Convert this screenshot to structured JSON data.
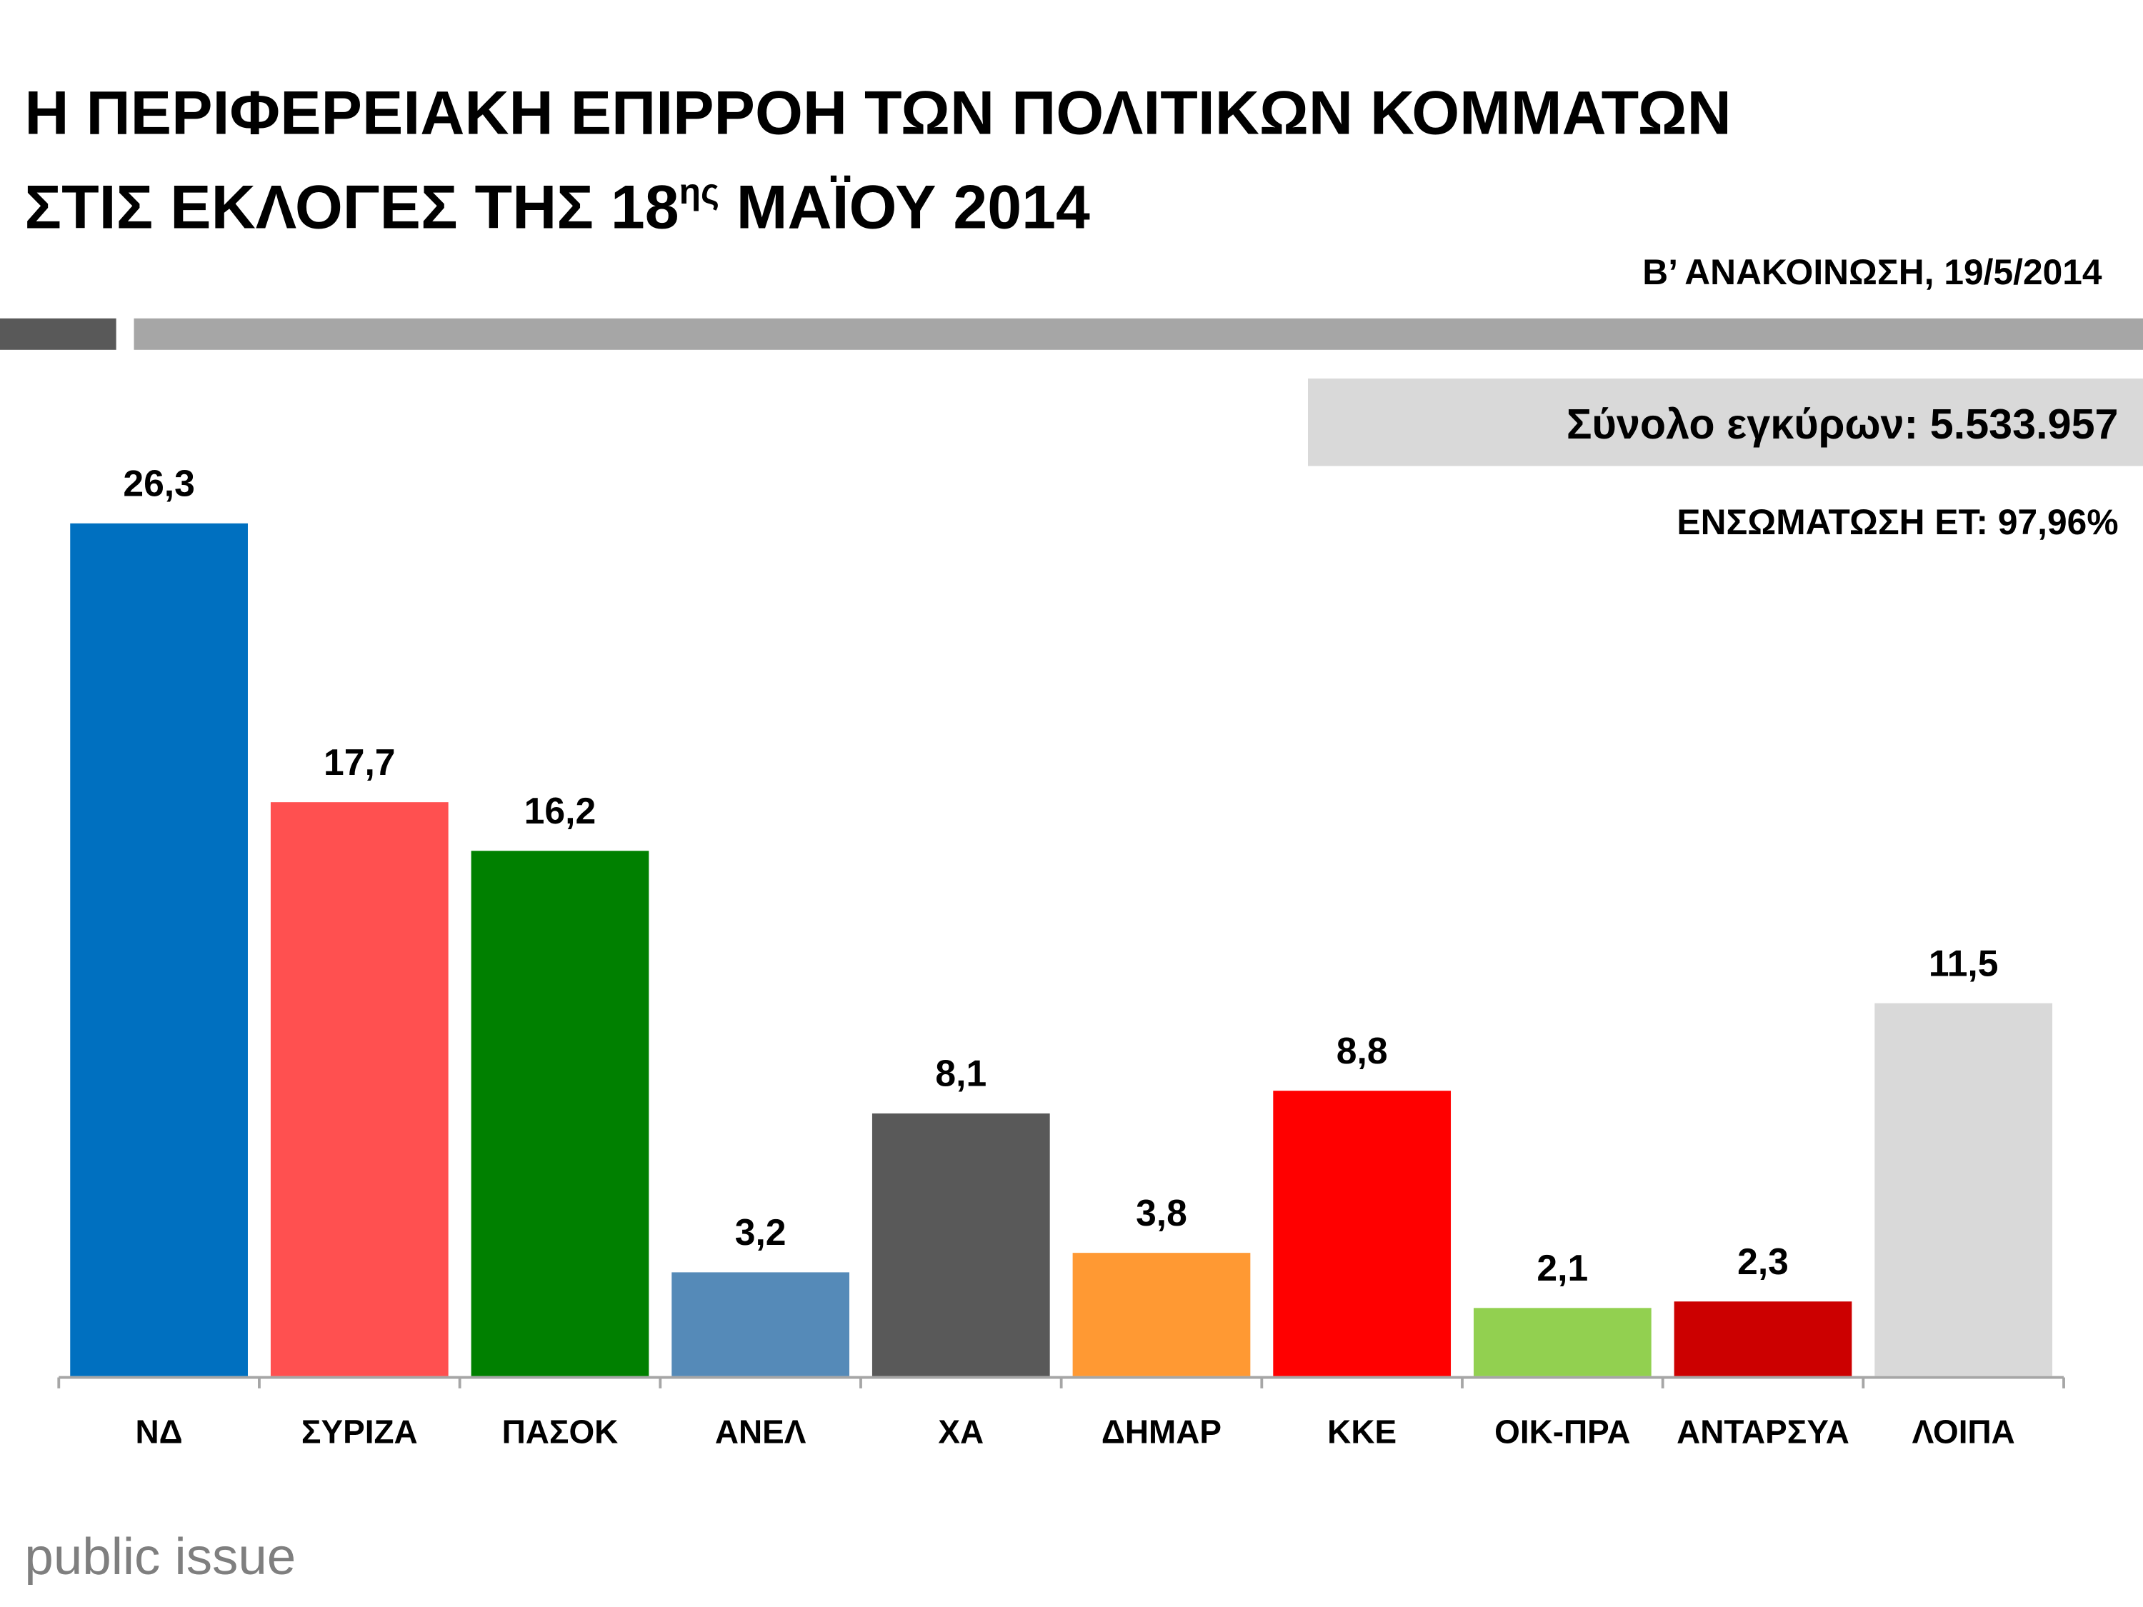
{
  "chart_data": {
    "type": "bar",
    "title": [
      "Η ΠΕΡΙΦΕΡΕΙΑΚΗ ΕΠΙΡΡΟΗ ΤΩΝ ΠΟΛΙΤΙΚΩΝ ΚΟΜΜΑΤΩΝ",
      "ΣΤΙΣ ΕΚΛΟΓΕΣ ΤΗΣ 18",
      "ης",
      " ΜΑΪΟΥ 2014"
    ],
    "subtitle": "Β’ ΑΝΑΚΟΙΝΩΣΗ, 19/5/2014",
    "annotations": [
      "Σύνολο εγκύρων: 5.533.957",
      "ΕΝΣΩΜΑΤΩΣΗ ΕΤ: 97,96%"
    ],
    "source": "public issue",
    "categories": [
      "ΝΔ",
      "ΣΥΡΙΖΑ",
      "ΠΑΣΟΚ",
      "ΑΝΕΛ",
      "ΧΑ",
      "ΔΗΜΑΡ",
      "ΚΚΕ",
      "ΟΙΚ-ΠΡΑ",
      "ΑΝΤΑΡΣΥΑ",
      "ΛΟΙΠΑ"
    ],
    "values": [
      26.3,
      17.7,
      16.2,
      3.2,
      8.1,
      3.8,
      8.8,
      2.1,
      2.3,
      11.5
    ],
    "value_labels": [
      "26,3",
      "17,7",
      "16,2",
      "3,2",
      "8,1",
      "3,8",
      "8,8",
      "2,1",
      "2,3",
      "11,5"
    ],
    "colors": [
      "#0070c0",
      "#ff5050",
      "#008000",
      "#558ab8",
      "#595959",
      "#ff9933",
      "#ff0000",
      "#92d050",
      "#cc0000",
      "#d9d9d9"
    ]
  }
}
